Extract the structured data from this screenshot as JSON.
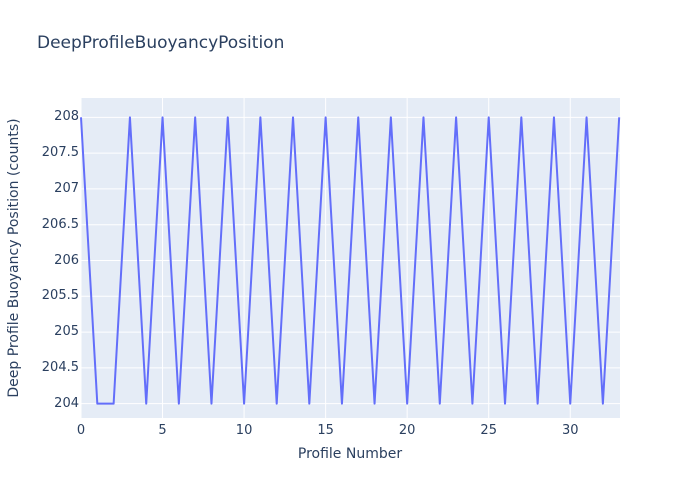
{
  "figure": {
    "title": "DeepProfileBuoyancyPosition"
  },
  "chart_data": {
    "type": "line",
    "title": "DeepProfileBuoyancyPosition",
    "xlabel": "Profile Number",
    "ylabel": "Deep Profile Buoyancy Position (counts)",
    "x": [
      0,
      1,
      2,
      3,
      4,
      5,
      6,
      7,
      8,
      9,
      10,
      11,
      12,
      13,
      14,
      15,
      16,
      17,
      18,
      19,
      20,
      21,
      22,
      23,
      24,
      25,
      26,
      27,
      28,
      29,
      30,
      31,
      32,
      33
    ],
    "y": [
      208,
      204,
      204,
      208,
      204,
      208,
      204,
      208,
      204,
      208,
      204,
      208,
      204,
      208,
      204,
      208,
      204,
      208,
      204,
      208,
      204,
      208,
      204,
      208,
      204,
      208,
      204,
      208,
      204,
      208,
      204,
      208,
      204,
      208
    ],
    "x_tick_values": [
      0,
      5,
      10,
      15,
      20,
      25,
      30
    ],
    "x_tick_labels": [
      "0",
      "5",
      "10",
      "15",
      "20",
      "25",
      "30"
    ],
    "y_tick_values": [
      204,
      204.5,
      205,
      205.5,
      206,
      206.5,
      207,
      207.5,
      208
    ],
    "y_tick_labels": [
      "204",
      "204.5",
      "205",
      "205.5",
      "206",
      "206.5",
      "207",
      "207.5",
      "208"
    ],
    "x_range": [
      0,
      33.05
    ],
    "y_range": [
      203.8,
      208.27
    ],
    "grid": true,
    "legend": "none",
    "colors": {
      "line": "#636efa",
      "plot_background": "#e5ecf6",
      "grid": "#ffffff",
      "text": "#2a3f5f"
    }
  }
}
